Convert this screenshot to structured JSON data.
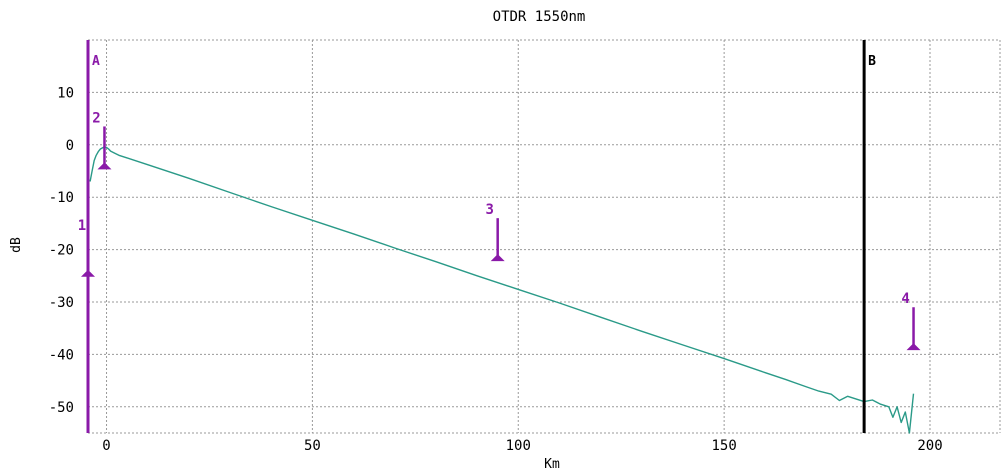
{
  "chart_data": {
    "type": "line",
    "title": "OTDR 1550nm",
    "xlabel": "Km",
    "ylabel": "dB",
    "xlim": [
      -4.5,
      217
    ],
    "ylim": [
      -55,
      20
    ],
    "x_ticks": [
      0,
      50,
      100,
      150,
      200
    ],
    "x_tick_labels": [
      "0",
      "50",
      "100",
      "150",
      "200"
    ],
    "y_ticks": [
      10,
      0,
      -10,
      -20,
      -30,
      -40,
      -50
    ],
    "y_tick_labels": [
      "10",
      "0",
      "-10",
      "-20",
      "-30",
      "-40",
      "-50"
    ],
    "grid": true,
    "colors": {
      "trace": "#2a9a88",
      "marker": "#8a1aa8",
      "cursor_b": "#000000",
      "grid": "#9a9a9a"
    },
    "series": [
      {
        "x": [
          -4,
          -3.5,
          -3,
          -2.5,
          -2,
          -1.5,
          -1,
          -0.5,
          0,
          0.5,
          1,
          2,
          3,
          5,
          10,
          20,
          30,
          40,
          50,
          60,
          70,
          80,
          90,
          100,
          110,
          120,
          130,
          140,
          150,
          160,
          165,
          170,
          173,
          176,
          178,
          180,
          182,
          184,
          186,
          188,
          190,
          191,
          192,
          193,
          194,
          195,
          196
        ],
        "y": [
          -7,
          -5,
          -3,
          -2,
          -1.3,
          -0.8,
          -0.6,
          -0.4,
          -0.5,
          -0.8,
          -1.2,
          -1.6,
          -2,
          -2.5,
          -3.8,
          -6.4,
          -9.1,
          -11.8,
          -14.4,
          -17,
          -19.7,
          -22.3,
          -25,
          -27.6,
          -30.2,
          -32.9,
          -35.6,
          -38.2,
          -40.8,
          -43.5,
          -44.8,
          -46.2,
          -47,
          -47.6,
          -48.8,
          -48,
          -48.5,
          -49,
          -48.7,
          -49.5,
          -50,
          -52,
          -50,
          -53,
          -51,
          -55,
          -47.5
        ]
      }
    ],
    "cursors": [
      {
        "label": "A",
        "x": -4.5
      },
      {
        "label": "B",
        "x": 184
      }
    ],
    "markers": [
      {
        "label": "1",
        "x": -4.5,
        "y_base": -25,
        "y_top": -25
      },
      {
        "label": "2",
        "x": -0.5,
        "y_base": -4.5,
        "y_top": 3.5
      },
      {
        "label": "3",
        "x": 95,
        "y_base": -22,
        "y_top": -14
      },
      {
        "label": "4",
        "x": 196,
        "y_base": -39,
        "y_top": -31
      }
    ]
  }
}
